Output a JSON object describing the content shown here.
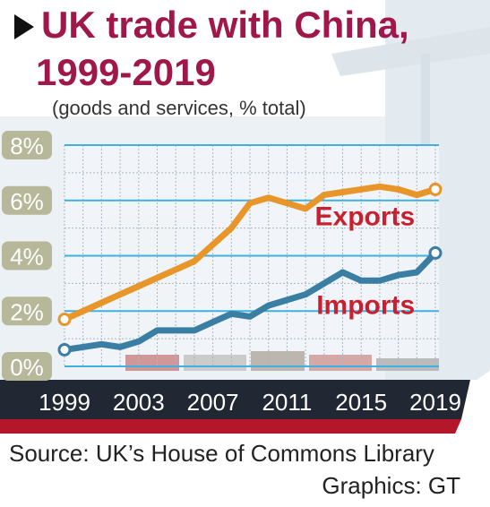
{
  "header": {
    "title_line1": "UK trade with China,",
    "title_line2": "1999-2019",
    "subtitle": "(goods and services, % total)"
  },
  "footer": {
    "source": "Source: UK’s House of Commons Library",
    "credit": "Graphics: GT"
  },
  "colors": {
    "title": "#a0174a",
    "exports": "#e8962a",
    "imports": "#3a7fa3",
    "series_label": "#c8202e",
    "grid": "#3fb0e0",
    "ytick_bg": "#b7b79a",
    "hull": "#222833",
    "hull_stripe": "#b4162a"
  },
  "chart_data": {
    "type": "line",
    "x": [
      1999,
      2000,
      2001,
      2002,
      2003,
      2004,
      2005,
      2006,
      2007,
      2008,
      2009,
      2010,
      2011,
      2012,
      2013,
      2014,
      2015,
      2016,
      2017,
      2018,
      2019
    ],
    "series": [
      {
        "name": "Exports",
        "values": [
          1.7,
          2.0,
          2.3,
          2.6,
          2.9,
          3.2,
          3.5,
          3.8,
          4.4,
          5.0,
          5.9,
          6.1,
          5.9,
          5.7,
          6.2,
          6.3,
          6.4,
          6.5,
          6.4,
          6.2,
          6.4
        ]
      },
      {
        "name": "Imports",
        "values": [
          0.6,
          0.7,
          0.8,
          0.7,
          0.9,
          1.3,
          1.3,
          1.3,
          1.6,
          1.9,
          1.8,
          2.2,
          2.4,
          2.6,
          3.0,
          3.4,
          3.1,
          3.1,
          3.3,
          3.4,
          4.1
        ]
      }
    ],
    "xticks": [
      "1999",
      "2003",
      "2007",
      "2011",
      "2015",
      "2019"
    ],
    "ytick_labels": [
      "0%",
      "2%",
      "4%",
      "6%",
      "8%"
    ],
    "ytick_values": [
      0,
      2,
      4,
      6,
      8
    ],
    "ylim": [
      0,
      8
    ],
    "xlim": [
      1999,
      2019
    ],
    "grid": true
  }
}
